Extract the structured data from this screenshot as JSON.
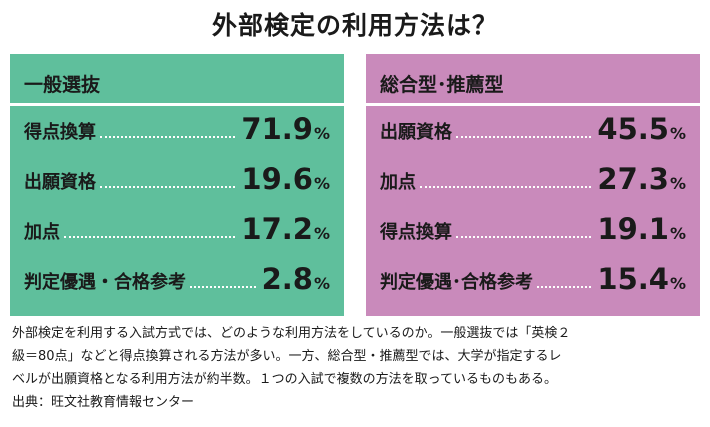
{
  "title": "外部検定の利用方法は？",
  "chart_data": [
    {
      "type": "table",
      "title": "一般選抜",
      "colors": {
        "panel": "#5fbf9c"
      },
      "categories": [
        "得点換算",
        "出願資格",
        "加点",
        "判定優遇・合格参考"
      ],
      "values": [
        71.9,
        19.6,
        17.2,
        2.8
      ],
      "value_labels": [
        "71.9",
        "19.6",
        "17.2",
        "2.8"
      ],
      "unit": "%"
    },
    {
      "type": "table",
      "title": "総合型･推薦型",
      "colors": {
        "panel": "#c98abb"
      },
      "categories": [
        "出願資格",
        "加点",
        "得点換算",
        "判定優遇･合格参考"
      ],
      "values": [
        45.5,
        27.3,
        19.1,
        15.4
      ],
      "value_labels": [
        "45.5",
        "27.3",
        "19.1",
        "15.4"
      ],
      "unit": "%"
    }
  ],
  "caption": {
    "line1": "外部検定を利用する入試方式では、どのような利用方法をしているのか。一般選抜では「英検２",
    "line2": "級＝80点」などと得点換算される方法が多い。一方、総合型・推薦型では、大学が指定するレ",
    "line3": "ベルが出願資格となる利用方法が約半数。１つの入試で複数の方法を取っているものもある。",
    "source": "出典：旺文社教育情報センター"
  }
}
